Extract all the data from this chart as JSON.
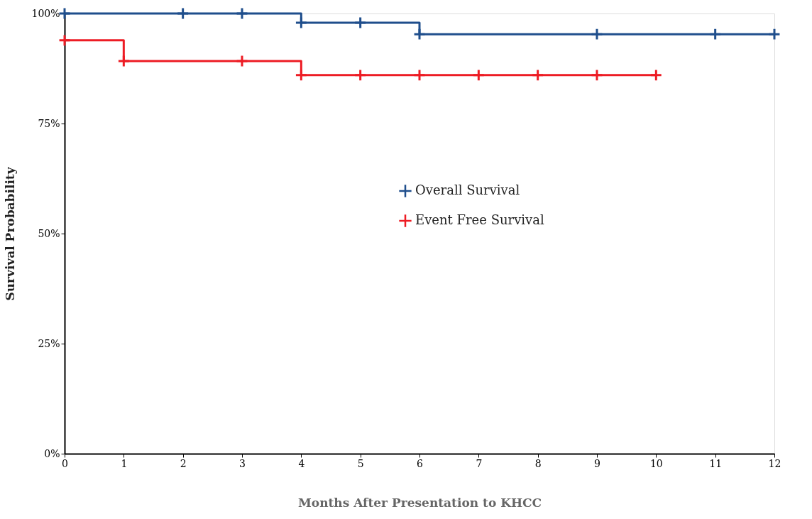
{
  "chart_data": {
    "type": "step",
    "xlabel": "Months After Presentation to KHCC",
    "ylabel": "Survival Probability",
    "series": [
      {
        "name": "Overall Survival",
        "color": "#1f4e8c",
        "x": [
          0,
          2,
          3,
          4,
          5,
          6,
          9,
          11,
          12
        ],
        "values": [
          100,
          100,
          100,
          97.9,
          97.9,
          95.3,
          95.3,
          95.3,
          95.3
        ]
      },
      {
        "name": "Event Free Survival",
        "color": "#ed1c24",
        "x": [
          0,
          1,
          3,
          4,
          5,
          6,
          7,
          8,
          9,
          10
        ],
        "values": [
          93.9,
          89.2,
          89.2,
          86.0,
          86.0,
          86.0,
          86.0,
          86.0,
          86.0,
          86.0
        ]
      }
    ],
    "xlim": [
      0,
      12
    ],
    "xticks": [
      0,
      1,
      2,
      3,
      4,
      5,
      6,
      7,
      8,
      9,
      10,
      11,
      12
    ],
    "ylim": [
      0,
      100
    ],
    "yticks": [
      {
        "value": 0,
        "label": "0%"
      },
      {
        "value": 25,
        "label": "25%"
      },
      {
        "value": 50,
        "label": "50%"
      },
      {
        "value": 75,
        "label": "75%"
      },
      {
        "value": 100,
        "label": "100%"
      }
    ],
    "grid": false,
    "legend": "right",
    "marker": "cross",
    "line_style": "solid"
  }
}
